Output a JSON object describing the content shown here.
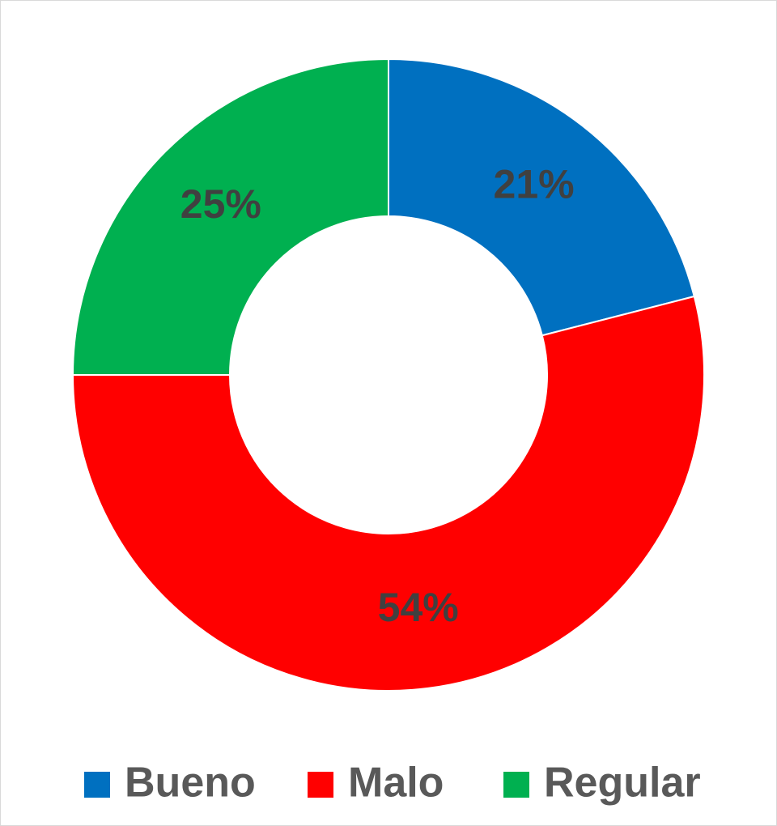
{
  "chart_data": {
    "type": "donut",
    "categories": [
      "Bueno",
      "Malo",
      "Regular"
    ],
    "values": [
      21,
      54,
      25
    ],
    "value_labels": [
      "21%",
      "54%",
      "25%"
    ],
    "colors": [
      "#0070c0",
      "#ff0000",
      "#00b050"
    ],
    "legend": "bottom"
  }
}
